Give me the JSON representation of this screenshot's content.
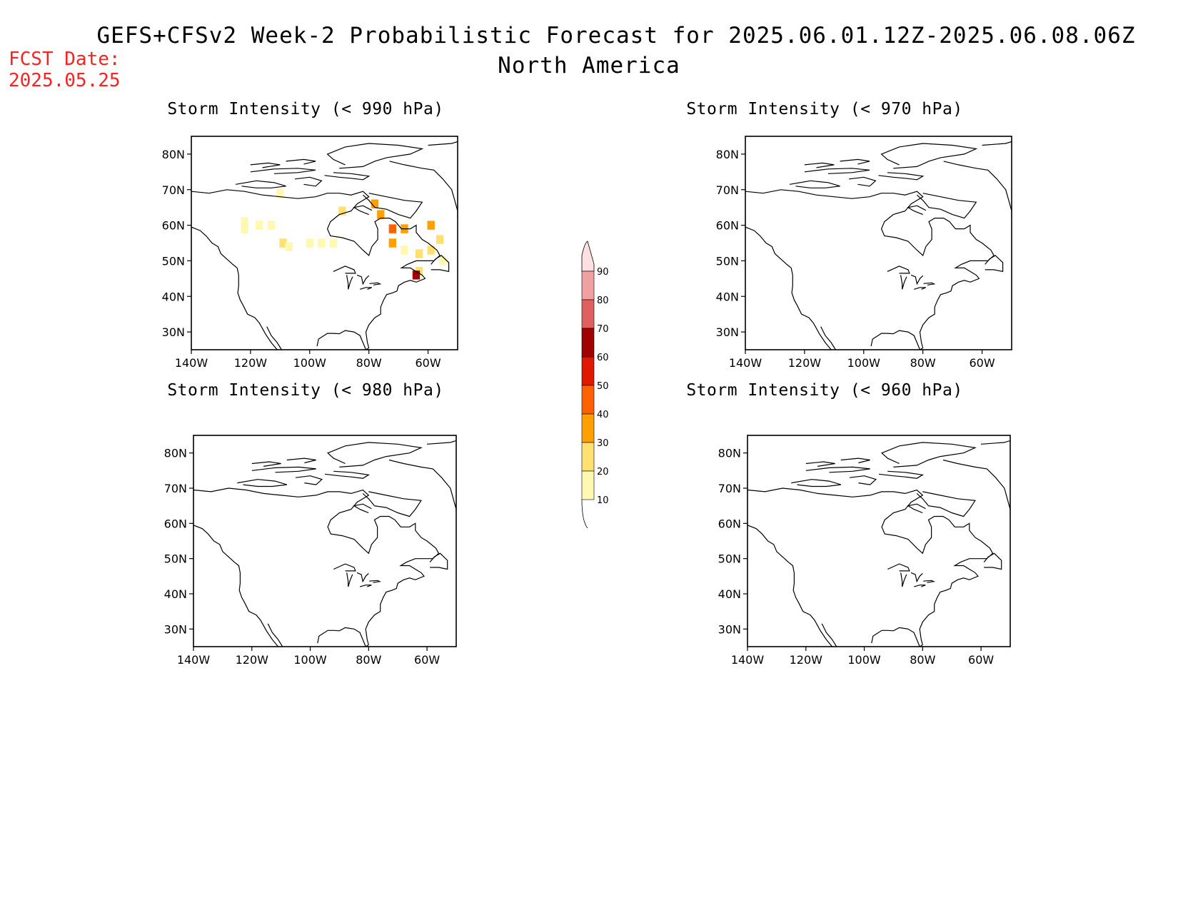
{
  "header": {
    "title": "GEFS+CFSv2 Week-2 Probabilistic Forecast for 2025.06.01.12Z-2025.06.08.06Z",
    "subtitle": "North America",
    "fcst_label": "FCST Date:",
    "fcst_value": "2025.05.25"
  },
  "panels": [
    {
      "id": "p990",
      "title": "Storm Intensity (< 990 hPa)"
    },
    {
      "id": "p970",
      "title": "Storm Intensity (< 970 hPa)"
    },
    {
      "id": "p980",
      "title": "Storm Intensity (< 980 hPa)"
    },
    {
      "id": "p960",
      "title": "Storm Intensity (< 960 hPa)"
    }
  ],
  "axes": {
    "lat_ticks": [
      "80N",
      "70N",
      "60N",
      "50N",
      "40N",
      "30N"
    ],
    "lat_values": [
      80,
      70,
      60,
      50,
      40,
      30
    ],
    "lon_ticks": [
      "140W",
      "120W",
      "100W",
      "80W",
      "60W"
    ],
    "lon_values": [
      -140,
      -120,
      -100,
      -80,
      -60
    ],
    "lat_range": [
      25,
      85
    ],
    "lon_range": [
      -140,
      -50
    ]
  },
  "colorbar": {
    "labels": [
      "10",
      "20",
      "30",
      "40",
      "50",
      "60",
      "70",
      "80",
      "90"
    ],
    "colors": [
      "#fff8b0",
      "#ffe070",
      "#ffa000",
      "#ff6000",
      "#e01800",
      "#a00000",
      "#e06060",
      "#f0a0a0",
      "#ffe0e0"
    ],
    "unit": "%"
  },
  "chart_data": {
    "type": "heatmap",
    "title": "GEFS+CFSv2 Week-2 Probabilistic Forecast for 2025.06.01.12Z-2025.06.08.06Z",
    "levels": [
      10,
      20,
      30,
      40,
      50,
      60,
      70,
      80,
      90
    ],
    "panels": [
      {
        "name": "Storm Intensity (< 990 hPa)",
        "cells": [
          {
            "lon": -122,
            "lat": 61,
            "value": 15
          },
          {
            "lon": -122,
            "lat": 59,
            "value": 15
          },
          {
            "lon": -117,
            "lat": 60,
            "value": 12
          },
          {
            "lon": -113,
            "lat": 60,
            "value": 12
          },
          {
            "lon": -110,
            "lat": 69,
            "value": 12
          },
          {
            "lon": -109,
            "lat": 55,
            "value": 20
          },
          {
            "lon": -107,
            "lat": 54,
            "value": 15
          },
          {
            "lon": -100,
            "lat": 55,
            "value": 12
          },
          {
            "lon": -96,
            "lat": 55,
            "value": 12
          },
          {
            "lon": -92,
            "lat": 55,
            "value": 12
          },
          {
            "lon": -89,
            "lat": 64,
            "value": 20
          },
          {
            "lon": -78,
            "lat": 66,
            "value": 30
          },
          {
            "lon": -76,
            "lat": 63,
            "value": 30
          },
          {
            "lon": -72,
            "lat": 59,
            "value": 40
          },
          {
            "lon": -68,
            "lat": 59,
            "value": 30
          },
          {
            "lon": -72,
            "lat": 55,
            "value": 30
          },
          {
            "lon": -68,
            "lat": 53,
            "value": 15
          },
          {
            "lon": -63,
            "lat": 52,
            "value": 20
          },
          {
            "lon": -59,
            "lat": 53,
            "value": 20
          },
          {
            "lon": -59,
            "lat": 60,
            "value": 30
          },
          {
            "lon": -56,
            "lat": 56,
            "value": 20
          },
          {
            "lon": -55,
            "lat": 50,
            "value": 15
          },
          {
            "lon": -63,
            "lat": 47,
            "value": 20
          },
          {
            "lon": -64,
            "lat": 46,
            "value": 60
          }
        ]
      },
      {
        "name": "Storm Intensity (< 970 hPa)",
        "cells": []
      },
      {
        "name": "Storm Intensity (< 980 hPa)",
        "cells": []
      },
      {
        "name": "Storm Intensity (< 960 hPa)",
        "cells": []
      }
    ]
  }
}
